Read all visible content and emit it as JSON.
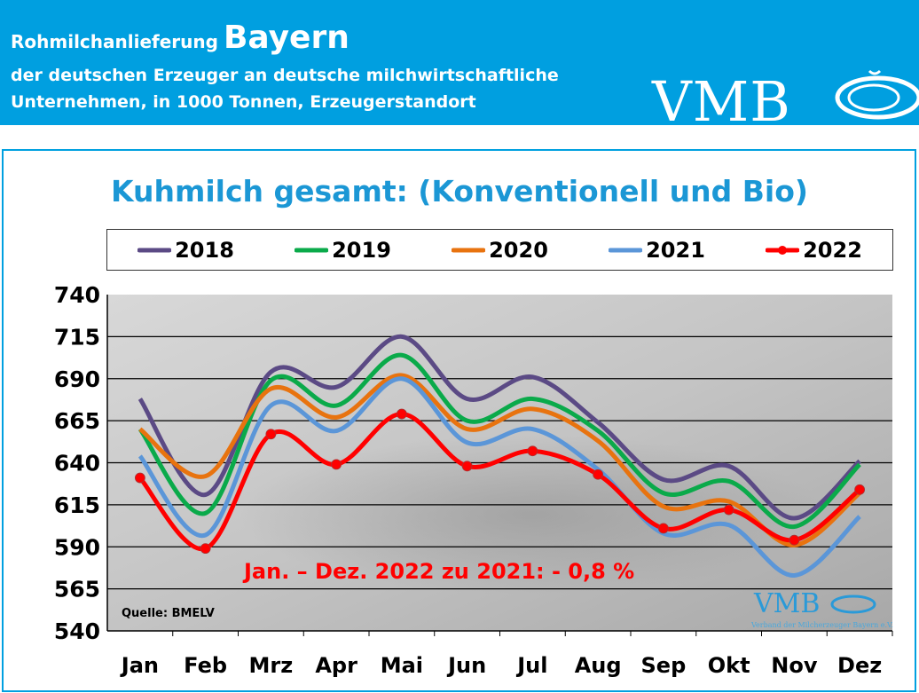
{
  "header": {
    "line1": "Rohmilchanlieferung",
    "region": "Bayern",
    "line2": "der deutschen Erzeuger an deutsche milchwirtschaftliche",
    "line3": "Unternehmen, in 1000 Tonnen, Erzeugerstandort",
    "logo": "VMB"
  },
  "chart_data": {
    "type": "line",
    "title": "Kuhmilch gesamt: (Konventionell und Bio)",
    "categories": [
      "Jan",
      "Feb",
      "Mrz",
      "Apr",
      "Mai",
      "Jun",
      "Jul",
      "Aug",
      "Sep",
      "Okt",
      "Nov",
      "Dez"
    ],
    "ylim": [
      540,
      740
    ],
    "yticks": [
      540,
      565,
      590,
      615,
      640,
      665,
      690,
      715,
      740
    ],
    "grid": true,
    "legend": "top",
    "series": [
      {
        "name": "2018",
        "color": "#5b4a85",
        "values": [
          678,
          621,
          694,
          685,
          715,
          678,
          691,
          664,
          630,
          638,
          607,
          641
        ]
      },
      {
        "name": "2019",
        "color": "#0aaa4a",
        "values": [
          660,
          610,
          689,
          674,
          704,
          665,
          678,
          659,
          622,
          629,
          602,
          639
        ]
      },
      {
        "name": "2020",
        "color": "#e8730f",
        "values": [
          660,
          632,
          684,
          667,
          692,
          660,
          672,
          653,
          614,
          617,
          591,
          622
        ]
      },
      {
        "name": "2021",
        "color": "#5b96d8",
        "values": [
          644,
          597,
          674,
          659,
          690,
          652,
          660,
          636,
          598,
          603,
          573,
          608
        ]
      },
      {
        "name": "2022",
        "color": "#ff0000",
        "values": [
          631,
          589,
          657,
          639,
          669,
          638,
          647,
          633,
          601,
          612,
          594,
          624
        ],
        "markers": true
      }
    ],
    "annotation": "Jan. – Dez. 2022 zu 2021: - 0,8 %",
    "source": "Quelle: BMELV",
    "watermark": "VMB",
    "watermark_sub": "Verband der Milcherzeuger Bayern e.V."
  }
}
